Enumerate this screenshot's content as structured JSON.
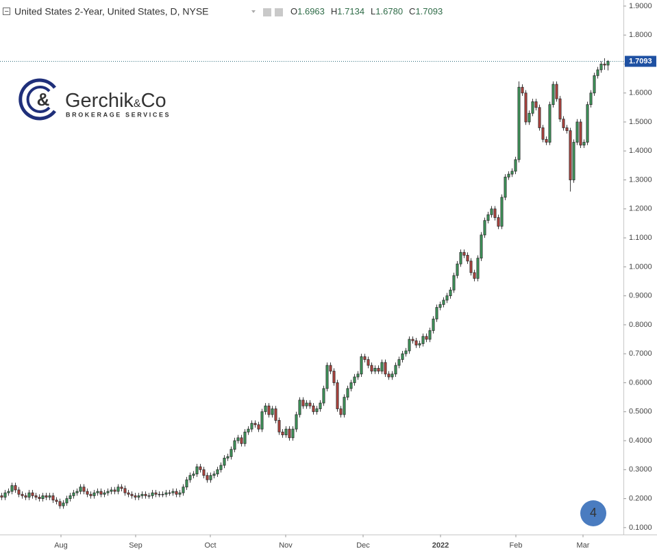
{
  "header": {
    "title": "United States 2-Year, United States, D, NYSE",
    "ohlc": [
      {
        "key": "O",
        "value": "1.6963"
      },
      {
        "key": "H",
        "value": "1.7134"
      },
      {
        "key": "L",
        "value": "1.6780"
      },
      {
        "key": "C",
        "value": "1.7093"
      }
    ]
  },
  "logo": {
    "name": "Gerchik",
    "amp": "&",
    "co": "Co",
    "tagline": "BROKERAGE SERVICES"
  },
  "badge": "4",
  "chart_data": {
    "type": "candlestick",
    "up_color": "#3f9a5c",
    "down_color": "#b5443f",
    "grid": false,
    "categories": [
      null,
      null,
      null,
      null,
      null,
      null,
      null,
      null,
      null,
      null,
      null,
      null,
      null,
      null,
      null,
      null,
      null,
      null,
      null,
      null,
      null,
      null,
      null,
      null,
      null,
      null,
      null,
      null,
      null,
      null,
      null,
      null,
      null,
      null,
      null,
      null,
      null,
      null,
      null,
      null,
      null,
      null,
      null,
      null,
      null,
      null,
      null,
      null,
      null,
      null,
      null,
      null,
      null,
      null,
      null,
      null,
      null,
      null,
      null,
      null,
      null,
      null,
      null,
      null,
      null,
      null,
      null,
      null,
      null,
      null,
      null,
      null,
      null,
      null,
      null,
      null,
      null,
      null,
      null,
      null,
      null,
      null,
      null,
      null,
      null,
      null,
      null,
      null,
      null,
      null,
      null,
      null,
      null,
      null,
      null,
      null,
      null,
      null,
      null,
      null,
      null,
      null,
      null,
      null,
      null,
      null,
      null,
      null,
      null,
      null,
      null,
      null,
      null,
      null,
      null,
      null,
      null,
      null,
      null,
      null,
      null,
      null,
      null,
      null,
      null,
      null,
      null,
      null,
      null,
      null,
      null,
      null,
      null,
      null,
      null,
      null,
      null,
      null,
      null,
      null,
      null,
      null,
      null,
      null,
      null,
      null,
      null,
      null,
      null,
      null,
      null,
      null,
      null,
      null,
      null,
      null,
      null,
      null,
      null,
      null,
      null,
      null,
      null,
      null,
      null,
      null,
      null,
      null,
      null,
      null,
      null,
      null,
      null,
      null,
      null,
      null,
      null,
      null
    ],
    "open": [
      0.21,
      0.205,
      0.22,
      0.225,
      0.245,
      0.23,
      0.215,
      0.21,
      0.205,
      0.22,
      0.21,
      0.205,
      0.2,
      0.21,
      0.205,
      0.21,
      0.195,
      0.19,
      0.175,
      0.185,
      0.2,
      0.21,
      0.22,
      0.225,
      0.24,
      0.225,
      0.215,
      0.21,
      0.22,
      0.225,
      0.215,
      0.22,
      0.225,
      0.23,
      0.225,
      0.24,
      0.235,
      0.22,
      0.215,
      0.21,
      0.205,
      0.21,
      0.215,
      0.21,
      0.21,
      0.22,
      0.215,
      0.215,
      0.215,
      0.22,
      0.22,
      0.225,
      0.215,
      0.22,
      0.24,
      0.265,
      0.28,
      0.285,
      0.31,
      0.3,
      0.28,
      0.265,
      0.28,
      0.285,
      0.3,
      0.315,
      0.34,
      0.345,
      0.37,
      0.4,
      0.41,
      0.39,
      0.43,
      0.44,
      0.46,
      0.455,
      0.44,
      0.5,
      0.52,
      0.49,
      0.51,
      0.47,
      0.43,
      0.42,
      0.44,
      0.41,
      0.44,
      0.49,
      0.54,
      0.52,
      0.53,
      0.52,
      0.5,
      0.51,
      0.53,
      0.58,
      0.66,
      0.64,
      0.6,
      0.51,
      0.49,
      0.55,
      0.58,
      0.6,
      0.62,
      0.63,
      0.69,
      0.68,
      0.66,
      0.64,
      0.65,
      0.64,
      0.67,
      0.63,
      0.62,
      0.63,
      0.66,
      0.68,
      0.7,
      0.71,
      0.75,
      0.745,
      0.73,
      0.735,
      0.76,
      0.75,
      0.78,
      0.82,
      0.86,
      0.87,
      0.885,
      0.9,
      0.92,
      0.97,
      1.01,
      1.05,
      1.04,
      1.02,
      0.98,
      0.96,
      1.03,
      1.11,
      1.16,
      1.18,
      1.2,
      1.17,
      1.14,
      1.24,
      1.31,
      1.32,
      1.33,
      1.37,
      1.62,
      1.6,
      1.5,
      1.53,
      1.57,
      1.55,
      1.48,
      1.44,
      1.43,
      1.56,
      1.63,
      1.58,
      1.51,
      1.48,
      1.47,
      1.3,
      1.43,
      1.5,
      1.42,
      1.43,
      1.56,
      1.6,
      1.66,
      1.68,
      1.7,
      1.6963
    ],
    "high": [
      0.22,
      0.23,
      0.235,
      0.255,
      0.255,
      0.24,
      0.225,
      0.22,
      0.23,
      0.23,
      0.22,
      0.215,
      0.22,
      0.22,
      0.22,
      0.22,
      0.205,
      0.2,
      0.195,
      0.21,
      0.22,
      0.23,
      0.235,
      0.25,
      0.25,
      0.235,
      0.225,
      0.23,
      0.235,
      0.235,
      0.23,
      0.235,
      0.24,
      0.24,
      0.25,
      0.25,
      0.245,
      0.23,
      0.225,
      0.22,
      0.22,
      0.225,
      0.225,
      0.22,
      0.23,
      0.23,
      0.225,
      0.225,
      0.23,
      0.23,
      0.235,
      0.235,
      0.23,
      0.25,
      0.275,
      0.29,
      0.295,
      0.32,
      0.32,
      0.31,
      0.29,
      0.29,
      0.295,
      0.31,
      0.325,
      0.35,
      0.355,
      0.38,
      0.41,
      0.42,
      0.42,
      0.44,
      0.45,
      0.47,
      0.47,
      0.465,
      0.51,
      0.53,
      0.53,
      0.52,
      0.52,
      0.48,
      0.44,
      0.45,
      0.45,
      0.45,
      0.5,
      0.55,
      0.55,
      0.54,
      0.54,
      0.53,
      0.52,
      0.54,
      0.59,
      0.67,
      0.67,
      0.65,
      0.61,
      0.52,
      0.56,
      0.59,
      0.61,
      0.63,
      0.64,
      0.7,
      0.7,
      0.69,
      0.67,
      0.66,
      0.66,
      0.68,
      0.68,
      0.64,
      0.64,
      0.67,
      0.69,
      0.71,
      0.72,
      0.76,
      0.76,
      0.755,
      0.745,
      0.77,
      0.77,
      0.79,
      0.83,
      0.87,
      0.88,
      0.895,
      0.91,
      0.93,
      0.98,
      1.02,
      1.06,
      1.06,
      1.05,
      1.03,
      0.99,
      1.04,
      1.12,
      1.17,
      1.19,
      1.21,
      1.21,
      1.18,
      1.25,
      1.32,
      1.33,
      1.34,
      1.38,
      1.64,
      1.63,
      1.61,
      1.54,
      1.58,
      1.58,
      1.56,
      1.49,
      1.45,
      1.57,
      1.64,
      1.64,
      1.59,
      1.52,
      1.49,
      1.48,
      1.44,
      1.51,
      1.51,
      1.44,
      1.57,
      1.61,
      1.67,
      1.69,
      1.71,
      1.72,
      1.7134
    ],
    "low": [
      0.195,
      0.195,
      0.21,
      0.215,
      0.22,
      0.205,
      0.2,
      0.195,
      0.195,
      0.2,
      0.195,
      0.19,
      0.19,
      0.195,
      0.195,
      0.185,
      0.18,
      0.165,
      0.165,
      0.175,
      0.19,
      0.2,
      0.21,
      0.215,
      0.215,
      0.205,
      0.2,
      0.2,
      0.21,
      0.205,
      0.205,
      0.21,
      0.215,
      0.215,
      0.215,
      0.225,
      0.21,
      0.205,
      0.2,
      0.195,
      0.195,
      0.2,
      0.2,
      0.2,
      0.2,
      0.205,
      0.205,
      0.205,
      0.205,
      0.21,
      0.21,
      0.205,
      0.205,
      0.21,
      0.23,
      0.255,
      0.27,
      0.275,
      0.29,
      0.27,
      0.255,
      0.255,
      0.27,
      0.275,
      0.29,
      0.305,
      0.33,
      0.335,
      0.36,
      0.39,
      0.38,
      0.38,
      0.42,
      0.43,
      0.445,
      0.43,
      0.43,
      0.49,
      0.48,
      0.48,
      0.46,
      0.42,
      0.41,
      0.41,
      0.4,
      0.4,
      0.43,
      0.48,
      0.51,
      0.51,
      0.51,
      0.49,
      0.49,
      0.5,
      0.52,
      0.57,
      0.63,
      0.59,
      0.5,
      0.48,
      0.48,
      0.54,
      0.57,
      0.59,
      0.61,
      0.62,
      0.67,
      0.65,
      0.63,
      0.63,
      0.63,
      0.63,
      0.62,
      0.61,
      0.61,
      0.62,
      0.65,
      0.67,
      0.69,
      0.7,
      0.735,
      0.72,
      0.72,
      0.725,
      0.74,
      0.74,
      0.77,
      0.81,
      0.85,
      0.86,
      0.875,
      0.89,
      0.91,
      0.96,
      1.0,
      1.03,
      1.01,
      0.97,
      0.95,
      0.95,
      1.02,
      1.1,
      1.15,
      1.17,
      1.16,
      1.13,
      1.13,
      1.23,
      1.3,
      1.31,
      1.32,
      1.36,
      1.59,
      1.49,
      1.49,
      1.52,
      1.54,
      1.47,
      1.43,
      1.42,
      1.42,
      1.55,
      1.57,
      1.5,
      1.47,
      1.46,
      1.26,
      1.29,
      1.42,
      1.41,
      1.41,
      1.42,
      1.55,
      1.59,
      1.65,
      1.67,
      1.68,
      1.678
    ],
    "close": [
      0.205,
      0.22,
      0.225,
      0.245,
      0.23,
      0.215,
      0.21,
      0.205,
      0.22,
      0.21,
      0.205,
      0.2,
      0.21,
      0.205,
      0.21,
      0.195,
      0.19,
      0.175,
      0.185,
      0.2,
      0.21,
      0.22,
      0.225,
      0.24,
      0.225,
      0.215,
      0.21,
      0.22,
      0.225,
      0.215,
      0.22,
      0.225,
      0.23,
      0.225,
      0.24,
      0.235,
      0.22,
      0.215,
      0.21,
      0.205,
      0.21,
      0.215,
      0.21,
      0.21,
      0.22,
      0.215,
      0.215,
      0.215,
      0.22,
      0.22,
      0.225,
      0.215,
      0.22,
      0.24,
      0.265,
      0.28,
      0.285,
      0.31,
      0.3,
      0.28,
      0.265,
      0.28,
      0.285,
      0.3,
      0.315,
      0.34,
      0.345,
      0.37,
      0.4,
      0.41,
      0.39,
      0.43,
      0.44,
      0.46,
      0.455,
      0.44,
      0.5,
      0.52,
      0.49,
      0.51,
      0.47,
      0.43,
      0.42,
      0.44,
      0.41,
      0.44,
      0.49,
      0.54,
      0.52,
      0.53,
      0.52,
      0.5,
      0.51,
      0.53,
      0.58,
      0.66,
      0.64,
      0.6,
      0.51,
      0.49,
      0.55,
      0.58,
      0.6,
      0.62,
      0.63,
      0.69,
      0.68,
      0.66,
      0.64,
      0.65,
      0.64,
      0.67,
      0.63,
      0.62,
      0.63,
      0.66,
      0.68,
      0.7,
      0.71,
      0.75,
      0.745,
      0.73,
      0.735,
      0.76,
      0.75,
      0.78,
      0.82,
      0.86,
      0.87,
      0.885,
      0.9,
      0.92,
      0.97,
      1.01,
      1.05,
      1.04,
      1.02,
      0.98,
      0.96,
      1.03,
      1.11,
      1.16,
      1.18,
      1.2,
      1.17,
      1.14,
      1.24,
      1.31,
      1.32,
      1.33,
      1.37,
      1.62,
      1.6,
      1.5,
      1.53,
      1.57,
      1.55,
      1.48,
      1.44,
      1.43,
      1.56,
      1.63,
      1.58,
      1.51,
      1.48,
      1.47,
      1.3,
      1.43,
      1.5,
      1.42,
      1.43,
      1.56,
      1.6,
      1.66,
      1.68,
      1.7,
      1.6963,
      1.7093
    ],
    "xlim": [
      -0.4,
      181.6
    ],
    "xticks": [
      {
        "value": 17.4,
        "label": "Aug"
      },
      {
        "value": 39.2,
        "label": "Sep"
      },
      {
        "value": 61,
        "label": "Oct"
      },
      {
        "value": 83,
        "label": "Nov"
      },
      {
        "value": 105.6,
        "label": "Dec"
      },
      {
        "value": 128.2,
        "label": "2022"
      },
      {
        "value": 150.2,
        "label": "Feb"
      },
      {
        "value": 169.8,
        "label": "Mar"
      }
    ],
    "ylim": [
      0.076,
      1.921
    ],
    "yticks": [
      {
        "value": 0.1,
        "label": "0.1000"
      },
      {
        "value": 0.2,
        "label": "0.2000"
      },
      {
        "value": 0.3,
        "label": "0.3000"
      },
      {
        "value": 0.4,
        "label": "0.4000"
      },
      {
        "value": 0.5,
        "label": "0.5000"
      },
      {
        "value": 0.6,
        "label": "0.6000"
      },
      {
        "value": 0.7,
        "label": "0.7000"
      },
      {
        "value": 0.8,
        "label": "0.8000"
      },
      {
        "value": 0.9,
        "label": "0.9000"
      },
      {
        "value": 1.0,
        "label": "1.0000"
      },
      {
        "value": 1.1,
        "label": "1.1000"
      },
      {
        "value": 1.2,
        "label": "1.2000"
      },
      {
        "value": 1.3,
        "label": "1.3000"
      },
      {
        "value": 1.4,
        "label": "1.4000"
      },
      {
        "value": 1.5,
        "label": "1.5000"
      },
      {
        "value": 1.6,
        "label": "1.6000"
      },
      {
        "value": 1.7,
        "label": "1.7000"
      },
      {
        "value": 1.8,
        "label": "1.8000"
      },
      {
        "value": 1.9,
        "label": "1.9000"
      }
    ],
    "last_price": {
      "value": 1.7093,
      "label": "1.7093"
    }
  }
}
